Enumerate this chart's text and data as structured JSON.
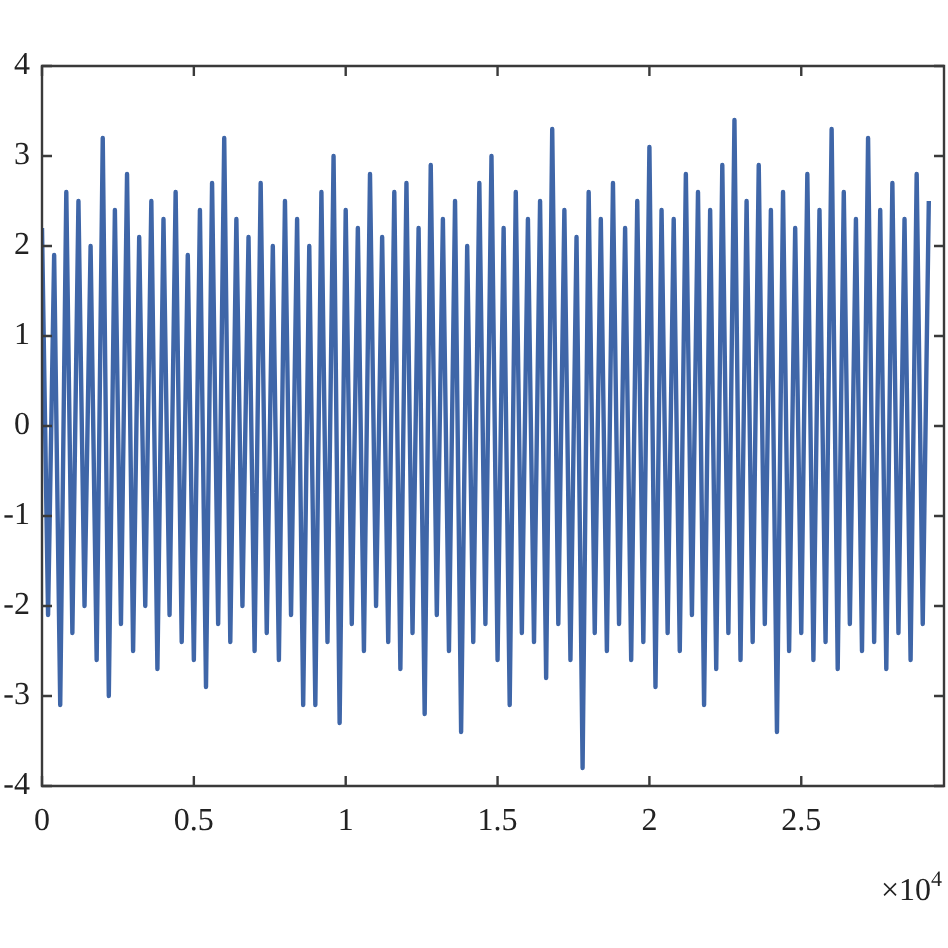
{
  "chart_data": {
    "type": "line",
    "x": [
      0,
      0.02,
      0.04,
      0.06,
      0.08,
      0.1,
      0.12,
      0.14,
      0.16,
      0.18,
      0.2,
      0.22,
      0.24,
      0.26,
      0.28,
      0.3,
      0.32,
      0.34,
      0.36,
      0.38,
      0.4,
      0.42,
      0.44,
      0.46,
      0.48,
      0.5,
      0.52,
      0.54,
      0.56,
      0.58,
      0.6,
      0.62,
      0.64,
      0.66,
      0.68,
      0.7,
      0.72,
      0.74,
      0.76,
      0.78,
      0.8,
      0.82,
      0.84,
      0.86,
      0.88,
      0.9,
      0.92,
      0.94,
      0.96,
      0.98,
      1,
      1.02,
      1.04,
      1.06,
      1.08,
      1.1,
      1.12,
      1.14,
      1.16,
      1.18,
      1.2,
      1.22,
      1.24,
      1.26,
      1.28,
      1.3,
      1.32,
      1.34,
      1.36,
      1.38,
      1.4,
      1.42,
      1.44,
      1.46,
      1.48,
      1.5,
      1.52,
      1.54,
      1.56,
      1.58,
      1.6,
      1.62,
      1.64,
      1.66,
      1.68,
      1.7,
      1.72,
      1.74,
      1.76,
      1.78,
      1.8,
      1.82,
      1.84,
      1.86,
      1.88,
      1.9,
      1.92,
      1.94,
      1.96,
      1.98,
      2,
      2.02,
      2.04,
      2.06,
      2.08,
      2.1,
      2.12,
      2.14,
      2.16,
      2.18,
      2.2,
      2.22,
      2.24,
      2.26,
      2.28,
      2.3,
      2.32,
      2.34,
      2.36,
      2.38,
      2.4,
      2.42,
      2.44,
      2.46,
      2.48,
      2.5,
      2.52,
      2.54,
      2.56,
      2.58,
      2.6,
      2.62,
      2.64,
      2.66,
      2.68,
      2.7,
      2.72,
      2.74,
      2.76,
      2.78,
      2.8,
      2.82,
      2.84,
      2.86,
      2.88,
      2.9,
      2.92
    ],
    "series": [
      {
        "color": "#3f66a8",
        "values": [
          2.2,
          -2.1,
          1.9,
          -3.1,
          2.6,
          -2.3,
          2.5,
          -2.0,
          2.0,
          -2.6,
          3.2,
          -3.0,
          2.4,
          -2.2,
          2.8,
          -2.5,
          2.1,
          -2.0,
          2.5,
          -2.7,
          2.3,
          -2.1,
          2.6,
          -2.4,
          1.9,
          -2.6,
          2.4,
          -2.9,
          2.7,
          -2.2,
          3.2,
          -2.4,
          2.3,
          -2.0,
          2.1,
          -2.5,
          2.7,
          -2.3,
          2.0,
          -2.6,
          2.5,
          -2.1,
          2.3,
          -3.1,
          2.0,
          -3.1,
          2.6,
          -2.4,
          3.0,
          -3.3,
          2.4,
          -2.2,
          2.2,
          -2.5,
          2.8,
          -2.0,
          2.1,
          -2.4,
          2.6,
          -2.7,
          2.7,
          -2.3,
          2.2,
          -3.2,
          2.9,
          -2.1,
          2.3,
          -2.5,
          2.5,
          -3.4,
          2.0,
          -2.4,
          2.7,
          -2.2,
          3.0,
          -2.6,
          2.2,
          -3.1,
          2.6,
          -2.3,
          2.3,
          -2.4,
          2.5,
          -2.8,
          3.3,
          -2.2,
          2.4,
          -2.6,
          2.1,
          -3.8,
          2.6,
          -2.3,
          2.3,
          -2.5,
          2.7,
          -2.2,
          2.2,
          -2.6,
          2.5,
          -2.4,
          3.1,
          -2.9,
          2.4,
          -2.3,
          2.3,
          -2.5,
          2.8,
          -2.1,
          2.6,
          -3.1,
          2.4,
          -2.7,
          2.9,
          -2.3,
          3.4,
          -2.6,
          2.5,
          -2.4,
          2.9,
          -2.2,
          2.4,
          -3.4,
          2.6,
          -2.5,
          2.2,
          -2.3,
          2.8,
          -2.6,
          2.4,
          -2.4,
          3.3,
          -2.7,
          2.6,
          -2.2,
          2.3,
          -2.5,
          3.2,
          -2.4,
          2.4,
          -2.7,
          2.7,
          -2.3,
          2.3,
          -2.6,
          2.8,
          -2.2,
          2.5
        ]
      }
    ],
    "xlim": [
      0,
      2.97
    ],
    "xticks": [
      0,
      0.5,
      1,
      1.5,
      2,
      2.5
    ],
    "ylim": [
      -4,
      4
    ],
    "yticks": [
      -4,
      -3,
      -2,
      -1,
      0,
      1,
      2,
      3,
      4
    ],
    "annotations": [
      "×10$^{4}$"
    ]
  }
}
